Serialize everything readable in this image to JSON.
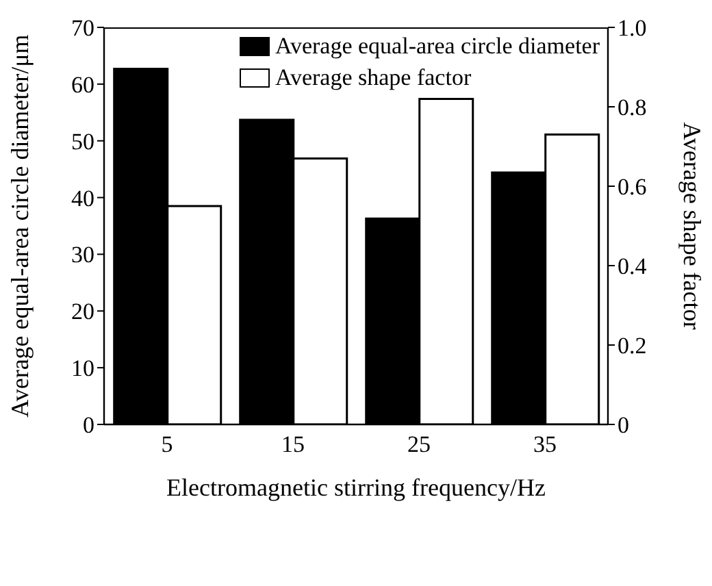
{
  "chart_data": {
    "type": "bar",
    "xlabel": "Electromagnetic stirring frequency/Hz",
    "ylabel": "Average equal-area circle diameter/μm",
    "y2label": "Average shape factor",
    "categories": [
      "5",
      "15",
      "25",
      "35"
    ],
    "series": [
      {
        "name": "Average equal-area circle diameter",
        "color": "#000000",
        "values": [
          62.7,
          53.7,
          36.3,
          44.4
        ]
      },
      {
        "name": "Average shape factor",
        "color": "#ffffff",
        "axis": "y2",
        "values": [
          0.55,
          0.67,
          0.82,
          0.73
        ]
      }
    ],
    "ylim": [
      0,
      70
    ],
    "yticks": [
      0,
      10,
      20,
      30,
      40,
      50,
      60,
      70
    ],
    "y2lim": [
      0,
      1.0
    ],
    "y2ticks": [
      {
        "value": 0,
        "label": "0"
      },
      0.2,
      0.4,
      0.6,
      0.8,
      {
        "value": 1.0,
        "label": "1.0"
      }
    ],
    "grid": false,
    "legend": "top right"
  }
}
